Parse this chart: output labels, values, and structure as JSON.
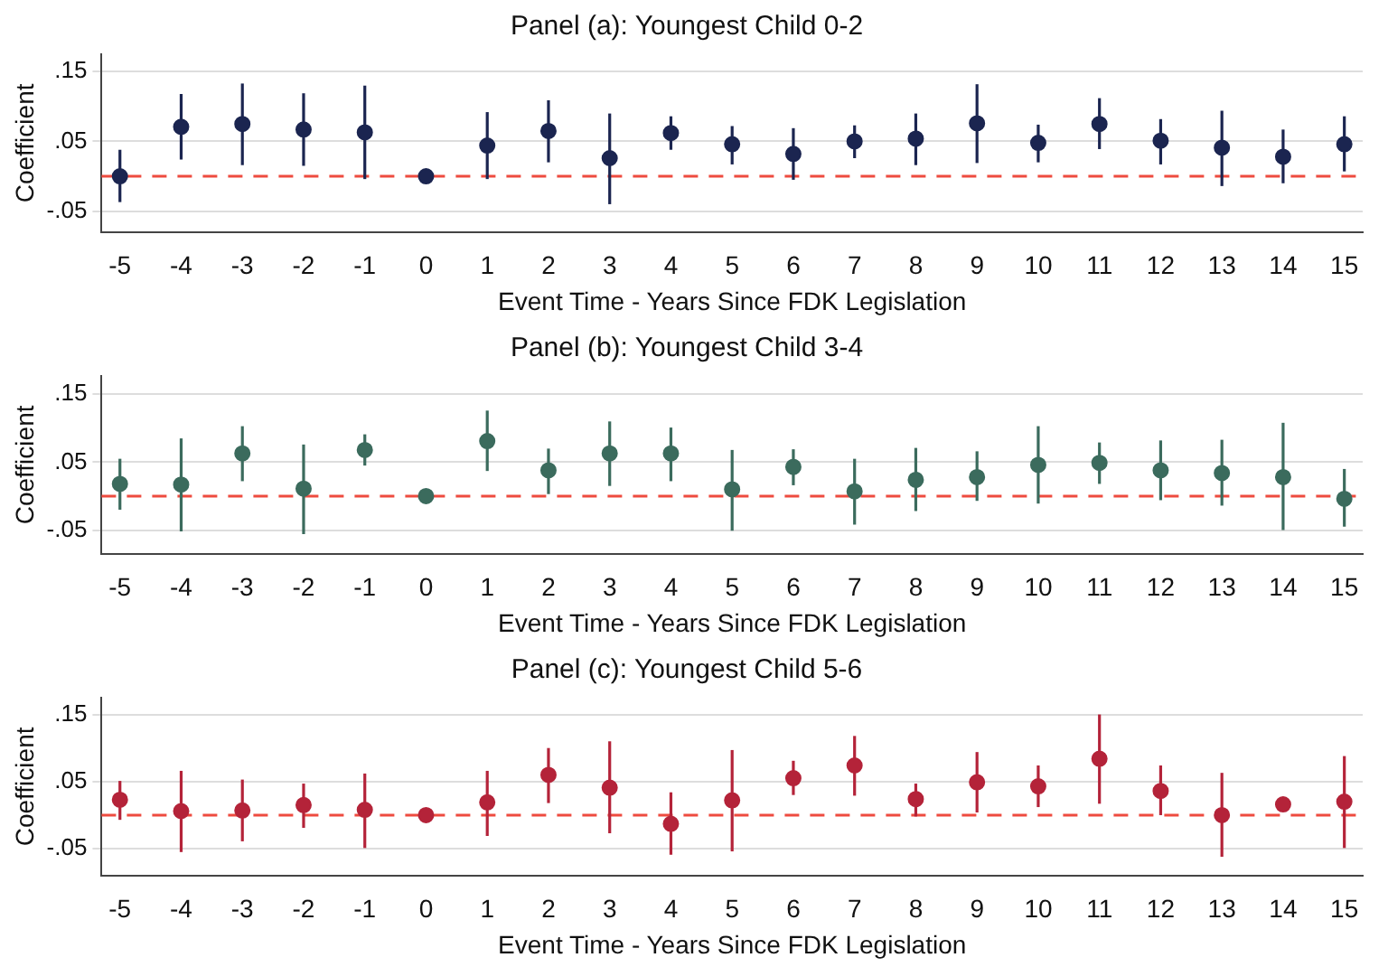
{
  "chart_data": [
    {
      "type": "scatter",
      "title": "Panel (a): Youngest Child 0-2",
      "xlabel": "Event Time - Years Since FDK Legislation",
      "ylabel": "Coefficient",
      "marker": "circle",
      "grid": "y",
      "x": [
        -5,
        -4,
        -3,
        -2,
        -1,
        0,
        1,
        2,
        3,
        4,
        5,
        6,
        7,
        8,
        9,
        10,
        11,
        12,
        13,
        14,
        15
      ],
      "xlim": [
        -5.3,
        15.3
      ],
      "xticks": [
        -5,
        -4,
        -3,
        -2,
        -1,
        0,
        1,
        2,
        3,
        4,
        5,
        6,
        7,
        8,
        9,
        10,
        11,
        12,
        13,
        14,
        15
      ],
      "ylim": [
        -0.08,
        0.175
      ],
      "yticks": [
        {
          "value": -0.05,
          "label": "-.05"
        },
        {
          "value": 0.05,
          "label": ".05"
        },
        {
          "value": 0.15,
          "label": ".15"
        }
      ],
      "ref_lines": [
        {
          "axis": "y",
          "value": 0,
          "color": "#ee4b3f",
          "line_style": "dashed"
        }
      ],
      "series": [
        {
          "color": "#1b2550",
          "values": [
            0.0,
            0.071,
            0.075,
            0.067,
            0.063,
            0.0,
            0.044,
            0.065,
            0.026,
            0.062,
            0.046,
            0.032,
            0.05,
            0.054,
            0.076,
            0.048,
            0.075,
            0.051,
            0.041,
            0.028,
            0.046
          ],
          "errors": [
            [
              -0.037,
              0.038
            ],
            [
              0.024,
              0.118
            ],
            [
              0.016,
              0.133
            ],
            [
              0.015,
              0.119
            ],
            [
              -0.004,
              0.13
            ],
            null,
            [
              -0.004,
              0.092
            ],
            [
              0.02,
              0.109
            ],
            [
              -0.04,
              0.09
            ],
            [
              0.038,
              0.086
            ],
            [
              0.017,
              0.072
            ],
            [
              -0.005,
              0.069
            ],
            [
              0.026,
              0.073
            ],
            [
              0.016,
              0.09
            ],
            [
              0.019,
              0.132
            ],
            [
              0.02,
              0.074
            ],
            [
              0.039,
              0.112
            ],
            [
              0.017,
              0.082
            ],
            [
              -0.014,
              0.094
            ],
            [
              -0.01,
              0.067
            ],
            [
              0.007,
              0.086
            ]
          ]
        }
      ]
    },
    {
      "type": "scatter",
      "title": "Panel (b): Youngest Child 3-4",
      "xlabel": "Event Time - Years Since FDK Legislation",
      "ylabel": "Coefficient",
      "marker": "circle",
      "grid": "y",
      "x": [
        -5,
        -4,
        -3,
        -2,
        -1,
        0,
        1,
        2,
        3,
        4,
        5,
        6,
        7,
        8,
        9,
        10,
        11,
        12,
        13,
        14,
        15
      ],
      "xlim": [
        -5.3,
        15.3
      ],
      "xticks": [
        -5,
        -4,
        -3,
        -2,
        -1,
        0,
        1,
        2,
        3,
        4,
        5,
        6,
        7,
        8,
        9,
        10,
        11,
        12,
        13,
        14,
        15
      ],
      "ylim": [
        -0.085,
        0.177
      ],
      "yticks": [
        {
          "value": -0.05,
          "label": "-.05"
        },
        {
          "value": 0.05,
          "label": ".05"
        },
        {
          "value": 0.15,
          "label": ".15"
        }
      ],
      "ref_lines": [
        {
          "axis": "y",
          "value": 0,
          "color": "#ee4b3f",
          "line_style": "dashed"
        }
      ],
      "series": [
        {
          "color": "#3b6b5d",
          "values": [
            0.018,
            0.017,
            0.063,
            0.011,
            0.068,
            0.0,
            0.081,
            0.038,
            0.063,
            0.063,
            0.01,
            0.043,
            0.007,
            0.024,
            0.028,
            0.046,
            0.049,
            0.038,
            0.034,
            0.028,
            -0.004
          ],
          "errors": [
            [
              -0.02,
              0.055
            ],
            [
              -0.052,
              0.085
            ],
            [
              0.022,
              0.103
            ],
            [
              -0.056,
              0.076
            ],
            [
              0.045,
              0.091
            ],
            null,
            [
              0.037,
              0.126
            ],
            [
              0.003,
              0.07
            ],
            [
              0.015,
              0.11
            ],
            [
              0.022,
              0.101
            ],
            [
              -0.051,
              0.068
            ],
            [
              0.016,
              0.069
            ],
            [
              -0.042,
              0.055
            ],
            [
              -0.022,
              0.071
            ],
            [
              -0.007,
              0.066
            ],
            [
              -0.011,
              0.103
            ],
            [
              0.018,
              0.079
            ],
            [
              -0.006,
              0.082
            ],
            [
              -0.014,
              0.083
            ],
            [
              -0.05,
              0.108
            ],
            [
              -0.045,
              0.04
            ]
          ]
        }
      ]
    },
    {
      "type": "scatter",
      "title": "Panel (c): Youngest Child 5-6",
      "xlabel": "Event Time - Years Since FDK Legislation",
      "ylabel": "Coefficient",
      "marker": "circle",
      "grid": "y",
      "x": [
        -5,
        -4,
        -3,
        -2,
        -1,
        0,
        1,
        2,
        3,
        4,
        5,
        6,
        7,
        8,
        9,
        10,
        11,
        12,
        13,
        14,
        15
      ],
      "xlim": [
        -5.3,
        15.3
      ],
      "xticks": [
        -5,
        -4,
        -3,
        -2,
        -1,
        0,
        1,
        2,
        3,
        4,
        5,
        6,
        7,
        8,
        9,
        10,
        11,
        12,
        13,
        14,
        15
      ],
      "ylim": [
        -0.09,
        0.175
      ],
      "yticks": [
        {
          "value": -0.05,
          "label": "-.05"
        },
        {
          "value": 0.05,
          "label": ".05"
        },
        {
          "value": 0.15,
          "label": ".15"
        }
      ],
      "ref_lines": [
        {
          "axis": "y",
          "value": 0,
          "color": "#ee4b3f",
          "line_style": "dashed"
        }
      ],
      "series": [
        {
          "color": "#b42339",
          "values": [
            0.023,
            0.006,
            0.007,
            0.015,
            0.008,
            0.0,
            0.019,
            0.06,
            0.041,
            -0.013,
            0.022,
            0.055,
            0.074,
            0.024,
            0.049,
            0.043,
            0.084,
            0.036,
            0.0,
            0.016,
            0.02
          ],
          "errors": [
            [
              -0.007,
              0.051
            ],
            [
              -0.055,
              0.066
            ],
            [
              -0.039,
              0.053
            ],
            [
              -0.019,
              0.047
            ],
            [
              -0.049,
              0.062
            ],
            null,
            [
              -0.031,
              0.066
            ],
            [
              0.018,
              0.1
            ],
            [
              -0.027,
              0.11
            ],
            [
              -0.059,
              0.034
            ],
            [
              -0.054,
              0.097
            ],
            [
              0.03,
              0.081
            ],
            [
              0.029,
              0.118
            ],
            [
              -0.002,
              0.047
            ],
            [
              0.004,
              0.094
            ],
            [
              0.012,
              0.074
            ],
            [
              0.017,
              0.15
            ],
            [
              0.0,
              0.074
            ],
            [
              -0.062,
              0.063
            ],
            [
              0.007,
              0.027
            ],
            [
              -0.049,
              0.088
            ]
          ]
        }
      ]
    }
  ]
}
